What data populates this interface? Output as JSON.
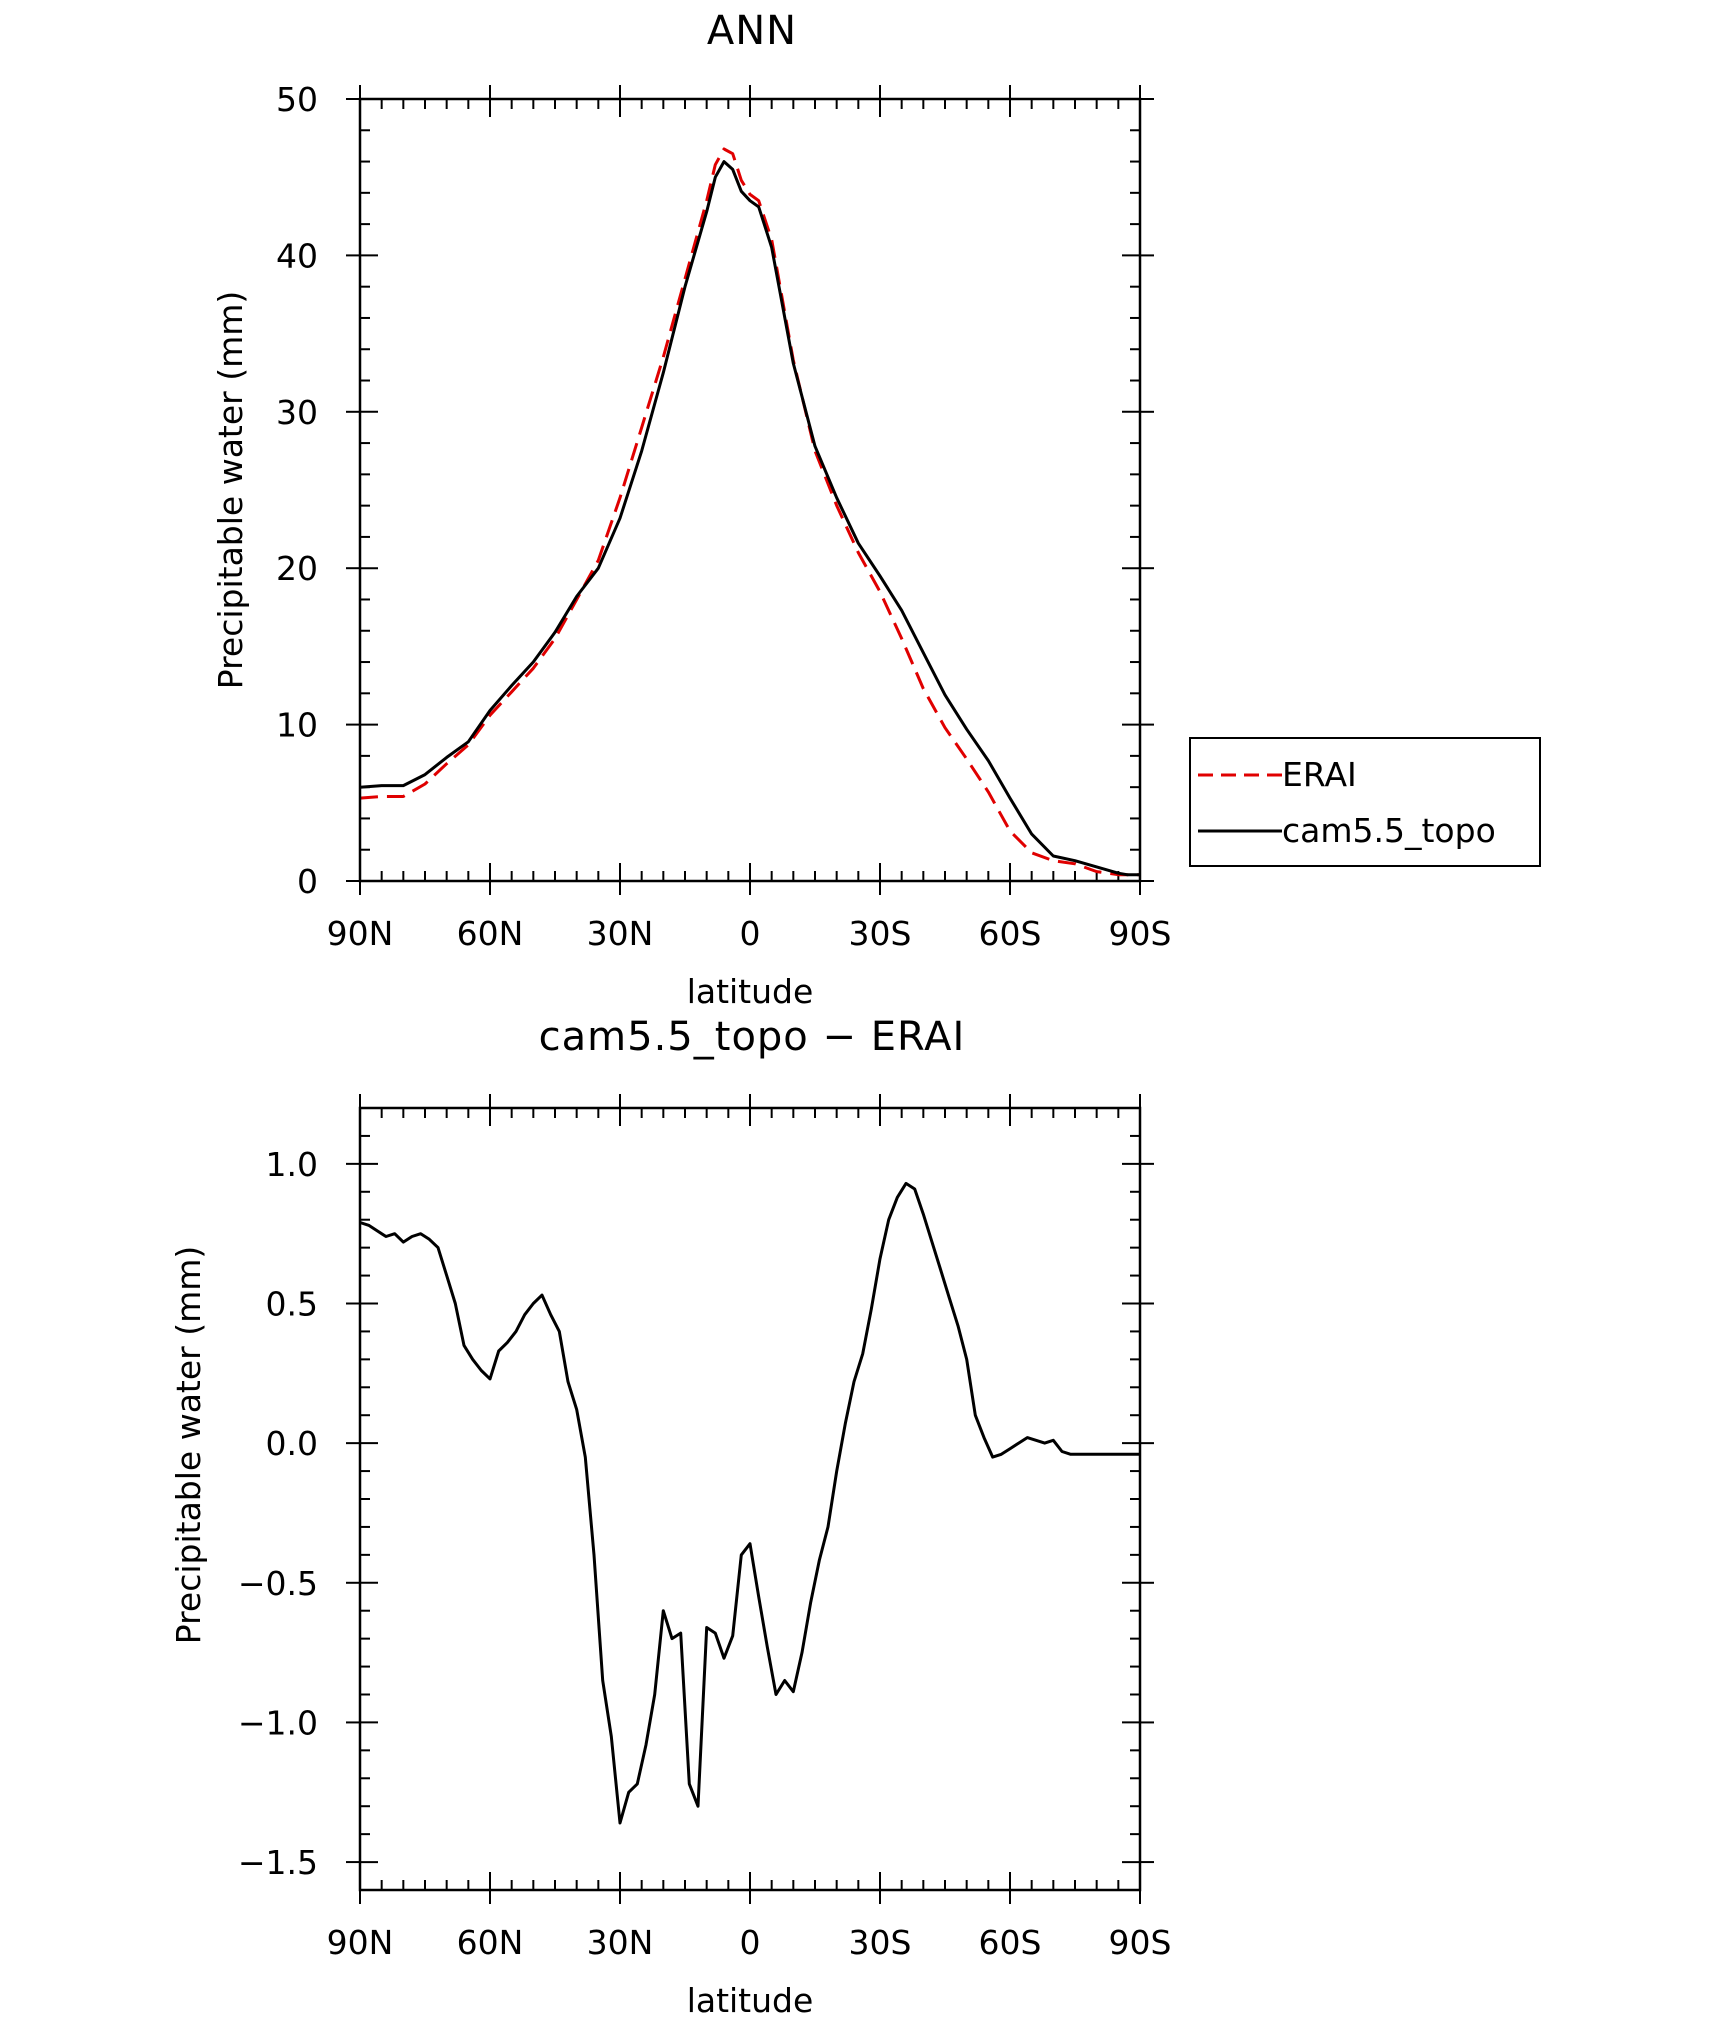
{
  "chart_data": [
    {
      "type": "line",
      "title": "ANN",
      "xlabel": "latitude",
      "ylabel": "Precipitable water (mm)",
      "xlim": [
        -90,
        90
      ],
      "ylim": [
        0,
        50
      ],
      "xticks": [
        {
          "value": -90,
          "label": "90N"
        },
        {
          "value": -60,
          "label": "60N"
        },
        {
          "value": -30,
          "label": "30N"
        },
        {
          "value": 0,
          "label": "0"
        },
        {
          "value": 30,
          "label": "30S"
        },
        {
          "value": 60,
          "label": "60S"
        },
        {
          "value": 90,
          "label": "90S"
        }
      ],
      "yticks": [
        {
          "value": 0,
          "label": "0"
        },
        {
          "value": 10,
          "label": "10"
        },
        {
          "value": 20,
          "label": "20"
        },
        {
          "value": 30,
          "label": "30"
        },
        {
          "value": 40,
          "label": "40"
        },
        {
          "value": 50,
          "label": "50"
        }
      ],
      "grid": false,
      "legend_position": "right",
      "series": [
        {
          "name": "ERAI",
          "color": "#e00000",
          "dash": true,
          "x": [
            -90,
            -85,
            -80,
            -75,
            -70,
            -65,
            -60,
            -55,
            -50,
            -45,
            -40,
            -35,
            -30,
            -25,
            -20,
            -15,
            -10,
            -8,
            -6,
            -4,
            -2,
            0,
            2,
            5,
            10,
            15,
            20,
            25,
            30,
            35,
            40,
            45,
            50,
            55,
            60,
            65,
            70,
            75,
            80,
            85,
            87,
            90
          ],
          "y": [
            5.3,
            5.4,
            5.4,
            6.2,
            7.5,
            8.7,
            10.6,
            12.1,
            13.6,
            15.5,
            18.0,
            20.5,
            24.5,
            29.0,
            33.5,
            38.5,
            43.5,
            45.8,
            46.8,
            46.5,
            44.8,
            43.9,
            43.5,
            41.0,
            33.3,
            27.5,
            24.0,
            21.0,
            18.5,
            15.5,
            12.3,
            9.8,
            7.8,
            5.7,
            3.2,
            1.8,
            1.3,
            1.1,
            0.6,
            0.4,
            0.4,
            0.4
          ]
        },
        {
          "name": "cam5.5_topo",
          "color": "#000000",
          "dash": false,
          "x": [
            -90,
            -85,
            -80,
            -75,
            -70,
            -65,
            -60,
            -55,
            -50,
            -45,
            -40,
            -35,
            -30,
            -25,
            -20,
            -15,
            -10,
            -8,
            -6,
            -4,
            -2,
            0,
            2,
            5,
            10,
            15,
            20,
            25,
            30,
            35,
            40,
            45,
            50,
            55,
            60,
            65,
            70,
            75,
            80,
            85,
            87,
            90
          ],
          "y": [
            6.0,
            6.1,
            6.1,
            6.8,
            7.9,
            8.9,
            10.9,
            12.5,
            14.0,
            15.9,
            18.2,
            20.0,
            23.2,
            27.5,
            32.5,
            38.0,
            42.8,
            45.0,
            46.0,
            45.5,
            44.1,
            43.5,
            43.1,
            40.5,
            33.1,
            27.8,
            24.5,
            21.6,
            19.5,
            17.3,
            14.6,
            11.9,
            9.7,
            7.7,
            5.3,
            3.0,
            1.6,
            1.3,
            0.9,
            0.5,
            0.4,
            0.4
          ]
        }
      ]
    },
    {
      "type": "line",
      "title": "cam5.5_topo − ERAI",
      "xlabel": "latitude",
      "ylabel": "Precipitable water (mm)",
      "xlim": [
        -90,
        90
      ],
      "ylim": [
        -1.6,
        1.2
      ],
      "xticks": [
        {
          "value": -90,
          "label": "90N"
        },
        {
          "value": -60,
          "label": "60N"
        },
        {
          "value": -30,
          "label": "30N"
        },
        {
          "value": 0,
          "label": "0"
        },
        {
          "value": 30,
          "label": "30S"
        },
        {
          "value": 60,
          "label": "60S"
        },
        {
          "value": 90,
          "label": "90S"
        }
      ],
      "yticks": [
        {
          "value": -1.5,
          "label": "−1.5"
        },
        {
          "value": -1.0,
          "label": "−1.0"
        },
        {
          "value": -0.5,
          "label": "−0.5"
        },
        {
          "value": 0.0,
          "label": "0.0"
        },
        {
          "value": 0.5,
          "label": "0.5"
        },
        {
          "value": 1.0,
          "label": "1.0"
        }
      ],
      "grid": false,
      "series": [
        {
          "color": "#000000",
          "dash": false,
          "x": [
            -90,
            -88,
            -86,
            -84,
            -82,
            -80,
            -78,
            -76,
            -74,
            -72,
            -70,
            -68,
            -66,
            -64,
            -62,
            -60,
            -58,
            -56,
            -54,
            -52,
            -50,
            -48,
            -46,
            -44,
            -42,
            -40,
            -38,
            -36,
            -34,
            -32,
            -30,
            -28,
            -26,
            -24,
            -22,
            -20,
            -18,
            -16,
            -14,
            -12,
            -10,
            -8,
            -6,
            -4,
            -2,
            0,
            2,
            4,
            6,
            8,
            10,
            12,
            14,
            16,
            18,
            20,
            22,
            24,
            26,
            28,
            30,
            32,
            34,
            36,
            38,
            40,
            42,
            44,
            46,
            48,
            50,
            52,
            54,
            56,
            58,
            60,
            62,
            64,
            66,
            68,
            70,
            72,
            74,
            76,
            78,
            80,
            82,
            84,
            86,
            88,
            90
          ],
          "y": [
            0.79,
            0.78,
            0.76,
            0.74,
            0.75,
            0.72,
            0.74,
            0.75,
            0.73,
            0.7,
            0.6,
            0.5,
            0.35,
            0.3,
            0.26,
            0.23,
            0.33,
            0.36,
            0.4,
            0.46,
            0.5,
            0.53,
            0.46,
            0.4,
            0.22,
            0.12,
            -0.05,
            -0.4,
            -0.85,
            -1.05,
            -1.36,
            -1.25,
            -1.22,
            -1.08,
            -0.9,
            -0.6,
            -0.7,
            -0.68,
            -1.22,
            -1.3,
            -0.66,
            -0.68,
            -0.77,
            -0.69,
            -0.4,
            -0.36,
            -0.55,
            -0.73,
            -0.9,
            -0.85,
            -0.89,
            -0.75,
            -0.57,
            -0.42,
            -0.3,
            -0.1,
            0.07,
            0.22,
            0.32,
            0.48,
            0.66,
            0.8,
            0.88,
            0.93,
            0.91,
            0.82,
            0.72,
            0.62,
            0.52,
            0.42,
            0.3,
            0.1,
            0.02,
            -0.05,
            -0.04,
            -0.02,
            0.0,
            0.02,
            0.01,
            0.0,
            0.01,
            -0.03,
            -0.04,
            -0.04,
            -0.04,
            -0.04,
            -0.04,
            -0.04,
            -0.04,
            -0.04,
            -0.04
          ]
        }
      ]
    }
  ]
}
